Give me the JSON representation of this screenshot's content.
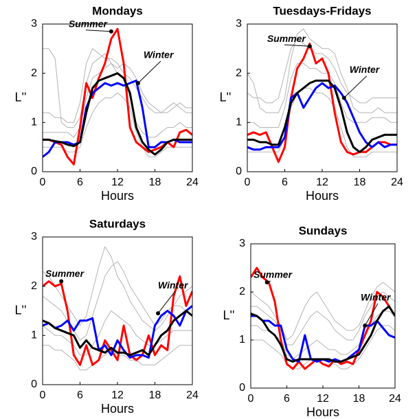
{
  "chart_data": [
    {
      "type": "line",
      "title": "Mondays",
      "xlabel": "Hours",
      "ylabel": "L''",
      "xlim": [
        0,
        24
      ],
      "ylim": [
        0,
        3
      ],
      "xticks": [
        0,
        6,
        12,
        18,
        24
      ],
      "yticks": [
        0,
        1,
        2,
        3
      ],
      "x": [
        0,
        1,
        2,
        3,
        4,
        5,
        6,
        7,
        8,
        9,
        10,
        11,
        12,
        13,
        14,
        15,
        16,
        17,
        18,
        19,
        20,
        21,
        22,
        23,
        24
      ],
      "series": [
        {
          "color": "#b3b3b3",
          "values": [
            1.2,
            1.2,
            1.1,
            1.1,
            1.0,
            1.0,
            1.4,
            2.2,
            2.5,
            2.4,
            2.3,
            2.3,
            2.2,
            2.0,
            1.9,
            1.7,
            1.5,
            1.3,
            1.2,
            1.2,
            1.3,
            1.4,
            1.3,
            1.2,
            1.2
          ]
        },
        {
          "color": "#b3b3b3",
          "values": [
            0.8,
            0.8,
            0.8,
            0.8,
            0.8,
            0.7,
            0.9,
            1.5,
            1.9,
            2.0,
            2.1,
            2.2,
            2.0,
            1.9,
            1.5,
            1.0,
            0.8,
            0.7,
            0.7,
            0.8,
            0.9,
            0.9,
            1.0,
            0.9,
            0.9
          ]
        },
        {
          "color": "#b3b3b3",
          "values": [
            0.5,
            0.5,
            0.5,
            0.5,
            0.4,
            0.4,
            0.5,
            0.9,
            1.2,
            1.4,
            1.5,
            1.5,
            1.6,
            1.5,
            1.3,
            0.8,
            0.5,
            0.3,
            0.3,
            0.4,
            0.5,
            0.5,
            0.5,
            0.5,
            0.5
          ]
        },
        {
          "color": "#b3b3b3",
          "values": [
            2.5,
            2.5,
            2.3,
            1.0,
            0.9,
            0.9,
            1.1,
            1.8,
            2.2,
            2.3,
            2.4,
            2.2,
            2.1,
            2.2,
            2.1,
            1.9,
            1.6,
            1.4,
            1.3,
            1.2,
            1.2,
            1.3,
            1.4,
            1.3,
            1.3
          ]
        },
        {
          "color": "#ff0000",
          "values": [
            0.65,
            0.65,
            0.6,
            0.55,
            0.3,
            0.15,
            0.9,
            1.8,
            1.5,
            1.9,
            2.2,
            2.7,
            2.9,
            2.2,
            0.9,
            0.6,
            0.5,
            0.4,
            0.45,
            0.5,
            0.6,
            0.5,
            0.8,
            0.85,
            0.75
          ]
        },
        {
          "color": "#0000ff",
          "values": [
            0.3,
            0.4,
            0.6,
            0.6,
            0.6,
            0.55,
            0.6,
            1.3,
            1.6,
            1.7,
            1.8,
            1.75,
            1.8,
            1.75,
            1.8,
            1.85,
            1.3,
            0.5,
            0.5,
            0.6,
            0.6,
            0.65,
            0.6,
            0.6,
            0.6
          ]
        },
        {
          "color": "#000000",
          "values": [
            0.65,
            0.65,
            0.62,
            0.6,
            0.55,
            0.52,
            0.6,
            1.2,
            1.7,
            1.85,
            1.9,
            1.95,
            2.0,
            1.9,
            1.6,
            0.9,
            0.6,
            0.45,
            0.35,
            0.45,
            0.6,
            0.65,
            0.65,
            0.65,
            0.65
          ]
        }
      ],
      "annotations": [
        {
          "text": "Summer",
          "x": 11,
          "y": 2.85
        },
        {
          "text": "Winter",
          "x": 15.3,
          "y": 1.8
        }
      ]
    },
    {
      "type": "line",
      "title": "Tuesdays-Fridays",
      "xlabel": "Hours",
      "ylabel": "L''",
      "xlim": [
        0,
        24
      ],
      "ylim": [
        0,
        3
      ],
      "xticks": [
        0,
        6,
        12,
        18,
        24
      ],
      "yticks": [
        0,
        1,
        2,
        3
      ],
      "x": [
        0,
        1,
        2,
        3,
        4,
        5,
        6,
        7,
        8,
        9,
        10,
        11,
        12,
        13,
        14,
        15,
        16,
        17,
        18,
        19,
        20,
        21,
        22,
        23,
        24
      ],
      "series": [
        {
          "color": "#b3b3b3",
          "values": [
            1.6,
            1.5,
            1.5,
            1.4,
            1.4,
            1.5,
            2.0,
            2.5,
            2.7,
            2.6,
            2.5,
            2.4,
            2.4,
            2.3,
            2.1,
            1.8,
            1.6,
            1.5,
            1.4,
            1.4,
            1.5,
            1.5,
            1.5,
            1.5,
            1.5
          ]
        },
        {
          "color": "#b3b3b3",
          "values": [
            1.0,
            1.0,
            0.9,
            0.9,
            0.9,
            0.9,
            1.3,
            1.9,
            2.2,
            2.2,
            2.1,
            2.1,
            2.0,
            2.0,
            1.8,
            1.4,
            1.1,
            1.0,
            1.0,
            1.0,
            1.1,
            1.1,
            1.1,
            1.0,
            1.0
          ]
        },
        {
          "color": "#b3b3b3",
          "values": [
            0.4,
            0.4,
            0.4,
            0.4,
            0.4,
            0.4,
            0.7,
            1.3,
            1.6,
            1.7,
            1.7,
            1.6,
            1.6,
            1.5,
            1.3,
            0.9,
            0.5,
            0.3,
            0.3,
            0.3,
            0.4,
            0.4,
            0.4,
            0.4,
            0.4
          ]
        },
        {
          "color": "#b3b3b3",
          "values": [
            2.0,
            1.8,
            1.3,
            1.2,
            1.2,
            1.2,
            1.5,
            2.3,
            2.8,
            2.9,
            2.7,
            2.6,
            2.5,
            2.5,
            2.4,
            2.0,
            1.7,
            1.3,
            1.2,
            1.2,
            1.2,
            1.3,
            1.2,
            1.2,
            1.2
          ]
        },
        {
          "color": "#ff0000",
          "values": [
            0.75,
            0.8,
            0.75,
            0.8,
            0.5,
            0.2,
            0.5,
            1.5,
            2.1,
            2.3,
            2.6,
            2.2,
            2.3,
            2.0,
            1.2,
            0.6,
            0.4,
            0.35,
            0.4,
            0.4,
            0.5,
            0.6,
            0.6,
            0.55,
            0.55
          ]
        },
        {
          "color": "#0000ff",
          "values": [
            0.5,
            0.45,
            0.45,
            0.5,
            0.5,
            0.5,
            0.7,
            1.5,
            1.6,
            1.3,
            1.5,
            1.7,
            1.8,
            1.7,
            1.75,
            1.6,
            1.4,
            1.1,
            0.8,
            0.6,
            0.5,
            0.6,
            0.5,
            0.55,
            0.55
          ]
        },
        {
          "color": "#000000",
          "values": [
            0.65,
            0.65,
            0.6,
            0.6,
            0.55,
            0.55,
            0.9,
            1.4,
            1.6,
            1.7,
            1.8,
            1.85,
            1.85,
            1.85,
            1.7,
            1.3,
            0.8,
            0.5,
            0.4,
            0.5,
            0.65,
            0.7,
            0.75,
            0.75,
            0.75
          ]
        }
      ],
      "annotations": [
        {
          "text": "Summer",
          "x": 10,
          "y": 2.55
        },
        {
          "text": "Winter",
          "x": 15.5,
          "y": 1.5
        }
      ]
    },
    {
      "type": "line",
      "title": "Saturdays",
      "xlabel": "Hours",
      "ylabel": "L''",
      "xlim": [
        0,
        24
      ],
      "ylim": [
        0,
        3
      ],
      "xticks": [
        0,
        6,
        12,
        18,
        24
      ],
      "yticks": [
        0,
        1,
        2,
        3
      ],
      "x": [
        0,
        1,
        2,
        3,
        4,
        5,
        6,
        7,
        8,
        9,
        10,
        11,
        12,
        13,
        14,
        15,
        16,
        17,
        18,
        19,
        20,
        21,
        22,
        23,
        24
      ],
      "series": [
        {
          "color": "#b3b3b3",
          "values": [
            1.8,
            1.7,
            1.6,
            1.5,
            1.3,
            1.1,
            0.9,
            1.0,
            1.4,
            1.8,
            2.2,
            2.4,
            2.5,
            2.3,
            2.0,
            1.8,
            1.6,
            1.4,
            1.2,
            1.3,
            1.5,
            1.6,
            1.6,
            1.5,
            1.4
          ]
        },
        {
          "color": "#b3b3b3",
          "values": [
            1.2,
            1.1,
            1.0,
            1.0,
            0.9,
            0.8,
            0.6,
            0.6,
            0.8,
            1.0,
            1.3,
            1.5,
            1.4,
            1.3,
            1.2,
            1.0,
            0.9,
            0.8,
            0.8,
            0.9,
            1.0,
            1.1,
            1.1,
            1.1,
            1.1
          ]
        },
        {
          "color": "#b3b3b3",
          "values": [
            0.8,
            0.8,
            0.7,
            0.7,
            0.6,
            0.5,
            0.3,
            0.3,
            0.4,
            0.5,
            0.6,
            0.7,
            0.6,
            0.6,
            0.5,
            0.5,
            0.4,
            0.4,
            0.4,
            0.5,
            0.6,
            0.7,
            0.8,
            0.8,
            0.8
          ]
        },
        {
          "color": "#b3b3b3",
          "values": [
            2.3,
            2.2,
            2.0,
            1.8,
            1.6,
            1.4,
            1.2,
            1.4,
            1.9,
            2.4,
            2.8,
            2.6,
            2.2,
            2.0,
            1.7,
            1.5,
            1.3,
            1.2,
            1.1,
            1.2,
            1.4,
            1.6,
            1.8,
            1.9,
            2.0
          ]
        },
        {
          "color": "#ff0000",
          "values": [
            2.0,
            2.1,
            2.0,
            2.05,
            1.5,
            0.6,
            0.4,
            0.8,
            0.4,
            0.5,
            0.9,
            0.7,
            0.5,
            1.2,
            0.6,
            0.5,
            0.6,
            1.0,
            0.6,
            0.8,
            0.7,
            1.8,
            2.2,
            1.6,
            1.9
          ]
        },
        {
          "color": "#0000ff",
          "values": [
            1.2,
            1.25,
            1.15,
            1.2,
            1.3,
            1.1,
            1.3,
            1.3,
            1.35,
            0.7,
            0.8,
            0.6,
            0.9,
            0.7,
            0.55,
            0.6,
            0.6,
            0.55,
            1.2,
            1.4,
            1.5,
            1.4,
            1.2,
            1.5,
            1.6
          ]
        },
        {
          "color": "#000000",
          "values": [
            1.3,
            1.25,
            1.15,
            1.1,
            1.05,
            1.0,
            0.75,
            0.9,
            0.75,
            0.7,
            0.65,
            0.75,
            0.65,
            0.65,
            0.6,
            0.65,
            0.7,
            0.6,
            0.8,
            1.0,
            1.1,
            1.3,
            1.4,
            1.5,
            1.4
          ]
        }
      ],
      "annotations": [
        {
          "text": "Summer",
          "x": 3,
          "y": 2.1
        },
        {
          "text": "Winter",
          "x": 18.5,
          "y": 1.45
        }
      ]
    },
    {
      "type": "line",
      "title": "Sundays",
      "xlabel": "Hours",
      "ylabel": "L''",
      "xlim": [
        0,
        24
      ],
      "ylim": [
        0,
        3
      ],
      "xticks": [
        0,
        6,
        12,
        18,
        24
      ],
      "yticks": [
        0,
        1,
        2,
        3
      ],
      "x": [
        0,
        1,
        2,
        3,
        4,
        5,
        6,
        7,
        8,
        9,
        10,
        11,
        12,
        13,
        14,
        15,
        16,
        17,
        18,
        19,
        20,
        21,
        22,
        23,
        24
      ],
      "series": [
        {
          "color": "#b3b3b3",
          "values": [
            1.7,
            1.7,
            1.6,
            1.5,
            1.4,
            1.2,
            0.9,
            0.9,
            1.1,
            1.3,
            1.5,
            1.6,
            1.5,
            1.4,
            1.2,
            1.1,
            1.0,
            1.0,
            1.2,
            1.5,
            1.7,
            1.9,
            2.0,
            1.9,
            1.8
          ]
        },
        {
          "color": "#b3b3b3",
          "values": [
            1.3,
            1.3,
            1.2,
            1.2,
            1.1,
            1.0,
            0.7,
            0.6,
            0.7,
            0.8,
            0.9,
            1.0,
            0.9,
            0.8,
            0.8,
            0.7,
            0.7,
            0.8,
            0.9,
            1.1,
            1.3,
            1.5,
            1.6,
            1.6,
            1.5
          ]
        },
        {
          "color": "#b3b3b3",
          "values": [
            1.0,
            1.0,
            1.0,
            0.9,
            0.8,
            0.7,
            0.5,
            0.4,
            0.4,
            0.5,
            0.6,
            0.6,
            0.5,
            0.5,
            0.5,
            0.4,
            0.4,
            0.5,
            0.6,
            0.8,
            1.0,
            1.2,
            1.3,
            1.3,
            1.2
          ]
        },
        {
          "color": "#b3b3b3",
          "values": [
            2.0,
            1.9,
            1.8,
            1.7,
            1.5,
            1.3,
            1.0,
            1.1,
            1.4,
            1.7,
            1.9,
            2.0,
            1.8,
            1.6,
            1.4,
            1.3,
            1.2,
            1.2,
            1.3,
            1.6,
            1.9,
            2.1,
            2.2,
            2.1,
            2.0
          ]
        },
        {
          "color": "#ff0000",
          "values": [
            2.3,
            2.5,
            2.3,
            2.2,
            1.8,
            1.0,
            0.5,
            0.4,
            0.55,
            0.4,
            0.5,
            0.6,
            0.5,
            0.45,
            0.6,
            0.5,
            0.55,
            0.5,
            0.8,
            1.1,
            1.4,
            2.0,
            1.9,
            1.7,
            1.5
          ]
        },
        {
          "color": "#0000ff",
          "values": [
            1.5,
            1.5,
            1.4,
            1.4,
            1.3,
            1.3,
            0.8,
            0.6,
            0.55,
            1.1,
            0.6,
            0.55,
            0.6,
            0.55,
            0.6,
            0.55,
            0.6,
            0.7,
            0.8,
            1.3,
            1.3,
            1.4,
            1.25,
            1.1,
            1.05
          ]
        },
        {
          "color": "#000000",
          "values": [
            1.55,
            1.5,
            1.4,
            1.2,
            1.1,
            0.9,
            0.6,
            0.55,
            0.6,
            0.6,
            0.6,
            0.6,
            0.6,
            0.6,
            0.55,
            0.55,
            0.6,
            0.65,
            0.7,
            0.9,
            1.1,
            1.4,
            1.6,
            1.7,
            1.5
          ]
        }
      ],
      "annotations": [
        {
          "text": "Summer",
          "x": 2.7,
          "y": 2.2
        },
        {
          "text": "Winter",
          "x": 19,
          "y": 1.3
        }
      ]
    }
  ]
}
